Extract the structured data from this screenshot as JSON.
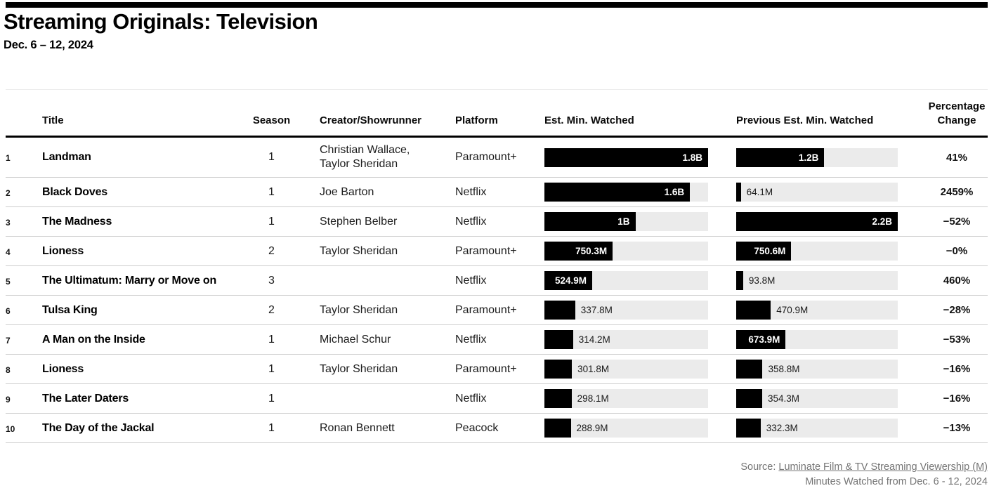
{
  "header": {
    "title": "Streaming Originals: Television",
    "subtitle": "Dec. 6 – 12, 2024"
  },
  "table": {
    "columns": {
      "title": "Title",
      "season": "Season",
      "creator": "Creator/Showrunner",
      "platform": "Platform",
      "est": "Est. Min. Watched",
      "prev": "Previous Est. Min. Watched",
      "pct": "Percentage\nChange"
    },
    "rows": [
      {
        "rank": "1",
        "title": "Landman",
        "season": "1",
        "creator": "Christian Wallace,\nTaylor Sheridan",
        "platform": "Paramount+",
        "est": {
          "label": "1.8B",
          "width_pct": 100,
          "label_inside": true
        },
        "prev": {
          "label": "1.2B",
          "width_pct": 54.5,
          "label_inside": true
        },
        "change": "41%"
      },
      {
        "rank": "2",
        "title": "Black Doves",
        "season": "1",
        "creator": "Joe Barton",
        "platform": "Netflix",
        "est": {
          "label": "1.6B",
          "width_pct": 88.9,
          "label_inside": true
        },
        "prev": {
          "label": "64.1M",
          "width_pct": 2.9,
          "label_inside": false
        },
        "change": "2459%"
      },
      {
        "rank": "3",
        "title": "The Madness",
        "season": "1",
        "creator": "Stephen Belber",
        "platform": "Netflix",
        "est": {
          "label": "1B",
          "width_pct": 55.6,
          "label_inside": true
        },
        "prev": {
          "label": "2.2B",
          "width_pct": 100,
          "label_inside": true
        },
        "change": "−52%"
      },
      {
        "rank": "4",
        "title": "Lioness",
        "season": "2",
        "creator": "Taylor Sheridan",
        "platform": "Paramount+",
        "est": {
          "label": "750.3M",
          "width_pct": 41.7,
          "label_inside": true
        },
        "prev": {
          "label": "750.6M",
          "width_pct": 34.1,
          "label_inside": true
        },
        "change": "−0%"
      },
      {
        "rank": "5",
        "title": "The Ultimatum: Marry or Move on",
        "season": "3",
        "creator": "",
        "platform": "Netflix",
        "est": {
          "label": "524.9M",
          "width_pct": 29.2,
          "label_inside": true
        },
        "prev": {
          "label": "93.8M",
          "width_pct": 4.3,
          "label_inside": false
        },
        "change": "460%"
      },
      {
        "rank": "6",
        "title": "Tulsa King",
        "season": "2",
        "creator": "Taylor Sheridan",
        "platform": "Paramount+",
        "est": {
          "label": "337.8M",
          "width_pct": 18.8,
          "label_inside": false
        },
        "prev": {
          "label": "470.9M",
          "width_pct": 21.4,
          "label_inside": false
        },
        "change": "−28%"
      },
      {
        "rank": "7",
        "title": "A Man on the Inside",
        "season": "1",
        "creator": "Michael Schur",
        "platform": "Netflix",
        "est": {
          "label": "314.2M",
          "width_pct": 17.5,
          "label_inside": false
        },
        "prev": {
          "label": "673.9M",
          "width_pct": 30.6,
          "label_inside": true
        },
        "change": "−53%"
      },
      {
        "rank": "8",
        "title": "Lioness",
        "season": "1",
        "creator": "Taylor Sheridan",
        "platform": "Paramount+",
        "est": {
          "label": "301.8M",
          "width_pct": 16.8,
          "label_inside": false
        },
        "prev": {
          "label": "358.8M",
          "width_pct": 16.3,
          "label_inside": false
        },
        "change": "−16%"
      },
      {
        "rank": "9",
        "title": "The Later Daters",
        "season": "1",
        "creator": "",
        "platform": "Netflix",
        "est": {
          "label": "298.1M",
          "width_pct": 16.6,
          "label_inside": false
        },
        "prev": {
          "label": "354.3M",
          "width_pct": 16.1,
          "label_inside": false
        },
        "change": "−16%"
      },
      {
        "rank": "10",
        "title": "The Day of the Jackal",
        "season": "1",
        "creator": "Ronan Bennett",
        "platform": "Peacock",
        "est": {
          "label": "288.9M",
          "width_pct": 16.1,
          "label_inside": false
        },
        "prev": {
          "label": "332.3M",
          "width_pct": 15.1,
          "label_inside": false
        },
        "change": "−13%"
      }
    ]
  },
  "footer": {
    "source_prefix": "Source: ",
    "source_link": "Luminate Film & TV Streaming Viewership (M)",
    "note": "Minutes Watched from Dec. 6 - 12, 2024"
  },
  "colors": {
    "bar_fill": "#000000",
    "bar_track": "#ebebeb",
    "row_separator": "#cdcdcd",
    "header_rule": "#000000",
    "footer_text": "#757575"
  },
  "chart_data": {
    "type": "table",
    "title": "Streaming Originals: Television",
    "subtitle": "Dec. 6 – 12, 2024",
    "categories": [
      "Landman",
      "Black Doves",
      "The Madness",
      "Lioness",
      "The Ultimatum: Marry or Move on",
      "Tulsa King",
      "A Man on the Inside",
      "Lioness",
      "The Later Daters",
      "The Day of the Jackal"
    ],
    "seasons": [
      1,
      1,
      1,
      2,
      3,
      2,
      1,
      1,
      1,
      1
    ],
    "creators": [
      "Christian Wallace, Taylor Sheridan",
      "Joe Barton",
      "Stephen Belber",
      "Taylor Sheridan",
      "",
      "Taylor Sheridan",
      "Michael Schur",
      "Taylor Sheridan",
      "",
      "Ronan Bennett"
    ],
    "platforms": [
      "Paramount+",
      "Netflix",
      "Netflix",
      "Paramount+",
      "Netflix",
      "Paramount+",
      "Netflix",
      "Paramount+",
      "Netflix",
      "Peacock"
    ],
    "series": [
      {
        "name": "Est. Min. Watched (millions)",
        "values": [
          1800,
          1600,
          1000,
          750.3,
          524.9,
          337.8,
          314.2,
          301.8,
          298.1,
          288.9
        ]
      },
      {
        "name": "Previous Est. Min. Watched (millions)",
        "values": [
          1200,
          64.1,
          2200,
          750.6,
          93.8,
          470.9,
          673.9,
          358.8,
          354.3,
          332.3
        ]
      },
      {
        "name": "Percentage Change (%)",
        "values": [
          41,
          2459,
          -52,
          0,
          460,
          -28,
          -53,
          -16,
          -16,
          -13
        ]
      }
    ],
    "bar_scale": {
      "est_column_max_millions": 1800,
      "prev_column_max_millions": 2200
    },
    "legend_position": "none",
    "grid": false
  }
}
